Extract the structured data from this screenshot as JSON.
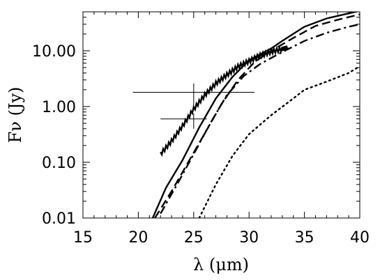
{
  "chart_data": {
    "type": "line",
    "xlabel": "λ (μm)",
    "ylabel": "Fν (Jy)",
    "xlim": [
      15,
      40
    ],
    "ylim": [
      0.01,
      50
    ],
    "yscale": "log",
    "x_ticks": [
      15,
      20,
      25,
      30,
      35,
      40
    ],
    "x_tick_labels": [
      "15",
      "20",
      "25",
      "30",
      "35",
      "40"
    ],
    "y_ticks": [
      0.01,
      0.1,
      1,
      10
    ],
    "y_tick_labels": [
      "0.01",
      "0.10",
      "1.00",
      "10.00"
    ],
    "grid": false,
    "legend": "none",
    "series": [
      {
        "style": "solid",
        "x": [
          21.3,
          22.5,
          24,
          25.5,
          27,
          28.5,
          30,
          32,
          33,
          35,
          37,
          39,
          40
        ],
        "y": [
          0.01,
          0.035,
          0.11,
          0.42,
          1.4,
          3.4,
          6.8,
          11,
          15,
          27,
          38,
          47,
          52
        ]
      },
      {
        "style": "dashed",
        "x": [
          21.5,
          23,
          24.5,
          26,
          27.5,
          29,
          30.5,
          32,
          34,
          36,
          38,
          40
        ],
        "y": [
          0.01,
          0.03,
          0.1,
          0.33,
          1.1,
          3,
          6.3,
          10,
          17,
          28,
          36,
          45
        ]
      },
      {
        "style": "dash-dot",
        "x": [
          22,
          23.5,
          25,
          26.5,
          28,
          29.5,
          31,
          33,
          35,
          37,
          39,
          40
        ],
        "y": [
          0.012,
          0.04,
          0.14,
          0.5,
          1.6,
          3.5,
          5.8,
          9.5,
          15,
          21,
          27,
          30
        ]
      },
      {
        "style": "dotted",
        "x": [
          25.5,
          27,
          28.5,
          30,
          32,
          34,
          35,
          37,
          39,
          40
        ],
        "y": [
          0.01,
          0.04,
          0.13,
          0.32,
          0.7,
          1.4,
          2,
          2.8,
          4,
          5.3
        ]
      },
      {
        "style": "spectrum",
        "x": [
          22,
          23,
          24,
          25,
          26,
          27,
          28,
          29,
          30,
          31,
          32,
          33,
          33.5
        ],
        "y": [
          0.14,
          0.24,
          0.45,
          0.9,
          1.6,
          2.6,
          3.7,
          5.2,
          6.5,
          8.2,
          9.6,
          10.8,
          11.5
        ]
      }
    ],
    "error_bars": [
      {
        "x": 25,
        "y": 1.8,
        "xerr": [
          19.5,
          30.5
        ],
        "yerr": [
          1.05,
          2.6
        ]
      },
      {
        "x": 25,
        "y": 0.6,
        "xerr": [
          22,
          26.2
        ],
        "yerr": [
          0.4,
          0.75
        ]
      }
    ]
  }
}
